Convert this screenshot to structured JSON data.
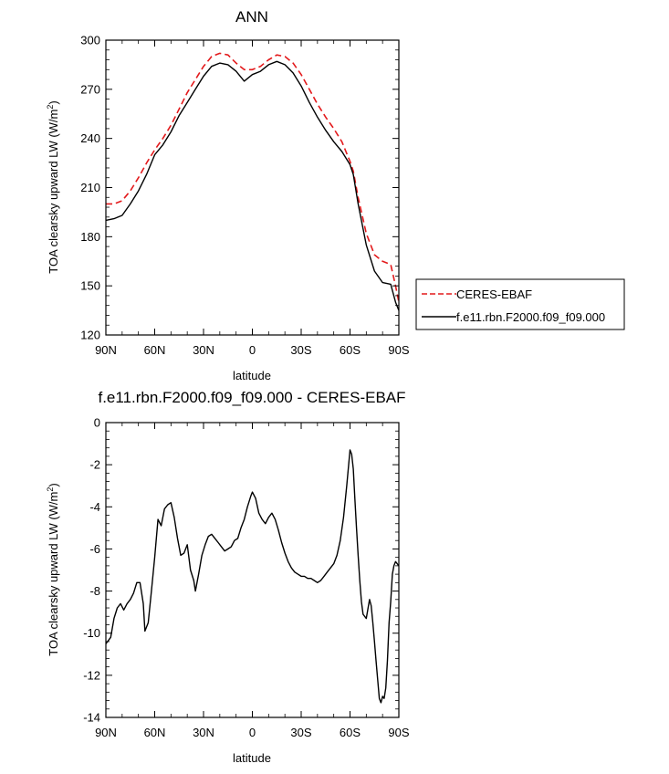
{
  "chart_data": [
    {
      "type": "line",
      "title": "ANN",
      "xlabel": "latitude",
      "ylabel": "TOA clearsky upward LW (W/m",
      "ylabel_sup": "2",
      "ylabel_tail": ")",
      "xlim": [
        -90,
        90
      ],
      "ylim": [
        120,
        300
      ],
      "x_ticks": [
        -90,
        -60,
        -30,
        0,
        30,
        60,
        90
      ],
      "x_tick_labels": [
        "90N",
        "60N",
        "30N",
        "0",
        "30S",
        "60S",
        "90S"
      ],
      "y_ticks": [
        120,
        150,
        180,
        210,
        240,
        270,
        300
      ],
      "y_tick_labels": [
        "120",
        "150",
        "180",
        "210",
        "240",
        "270",
        "300"
      ],
      "legend": {
        "placement": "right-outside"
      },
      "series": [
        {
          "name": "CERES-EBAF",
          "color": "#e31a1c",
          "dash": "dashed",
          "x": [
            -90,
            -85,
            -80,
            -75,
            -70,
            -65,
            -60,
            -55,
            -50,
            -45,
            -40,
            -35,
            -30,
            -25,
            -20,
            -15,
            -10,
            -5,
            0,
            5,
            10,
            15,
            20,
            25,
            30,
            35,
            40,
            45,
            50,
            55,
            60,
            62,
            65,
            70,
            75,
            80,
            85,
            88,
            90
          ],
          "y": [
            200,
            200,
            202,
            208,
            216,
            225,
            233,
            240,
            248,
            258,
            268,
            276,
            284,
            290,
            292,
            291,
            286,
            282,
            282,
            284,
            288,
            291,
            290,
            286,
            279,
            270,
            261,
            253,
            246,
            238,
            226,
            220,
            204,
            182,
            169,
            165,
            163,
            150,
            140
          ]
        },
        {
          "name": "f.e11.rbn.F2000.f09_f09.000",
          "color": "#000000",
          "dash": "solid",
          "x": [
            -90,
            -85,
            -80,
            -75,
            -70,
            -65,
            -60,
            -55,
            -50,
            -45,
            -40,
            -35,
            -30,
            -25,
            -20,
            -15,
            -10,
            -5,
            0,
            5,
            10,
            15,
            20,
            25,
            30,
            35,
            40,
            45,
            50,
            55,
            60,
            62,
            65,
            70,
            75,
            80,
            85,
            88,
            90
          ],
          "y": [
            190,
            191,
            193,
            200,
            208,
            218,
            230,
            236,
            244,
            254,
            262,
            270,
            278,
            284,
            286,
            285,
            281,
            275,
            279,
            281,
            285,
            287,
            285,
            280,
            272,
            262,
            253,
            245,
            238,
            232,
            224,
            218,
            200,
            175,
            159,
            152,
            151,
            140,
            135
          ]
        }
      ]
    },
    {
      "type": "line",
      "title": "f.e11.rbn.F2000.f09_f09.000 - CERES-EBAF",
      "xlabel": "latitude",
      "ylabel": "TOA clearsky upward LW (W/m",
      "ylabel_sup": "2",
      "ylabel_tail": ")",
      "xlim": [
        -90,
        90
      ],
      "ylim": [
        -14,
        0
      ],
      "x_ticks": [
        -90,
        -60,
        -30,
        0,
        30,
        60,
        90
      ],
      "x_tick_labels": [
        "90N",
        "60N",
        "30N",
        "0",
        "30S",
        "60S",
        "90S"
      ],
      "y_ticks": [
        -14,
        -12,
        -10,
        -8,
        -6,
        -4,
        -2,
        0
      ],
      "y_tick_labels": [
        "-14",
        "-12",
        "-10",
        "-8",
        "-6",
        "-4",
        "-2",
        "0"
      ],
      "series": [
        {
          "color": "#000000",
          "dash": "solid",
          "x": [
            -90,
            -87,
            -85,
            -83,
            -81,
            -79,
            -77,
            -75,
            -73,
            -71,
            -69,
            -67,
            -66,
            -64,
            -62,
            -60,
            -58,
            -56,
            -54,
            -52,
            -50,
            -48,
            -46,
            -44,
            -42,
            -40,
            -38,
            -36,
            -35,
            -33,
            -31,
            -29,
            -27,
            -25,
            -23,
            -21,
            -19,
            -17,
            -15,
            -13,
            -11,
            -9,
            -7,
            -5,
            -3,
            -1,
            0,
            2,
            4,
            6,
            8,
            10,
            12,
            14,
            16,
            18,
            20,
            22,
            24,
            26,
            28,
            30,
            32,
            34,
            36,
            38,
            40,
            42,
            44,
            46,
            48,
            50,
            52,
            54,
            56,
            58,
            60,
            61,
            62,
            63,
            64,
            65,
            66,
            67,
            68,
            70,
            72,
            73,
            74,
            75,
            76,
            77,
            78,
            79,
            80,
            81,
            82,
            83,
            84,
            85,
            86,
            87,
            88,
            89,
            90
          ],
          "y": [
            -10.5,
            -10.2,
            -9.3,
            -8.8,
            -8.6,
            -8.9,
            -8.6,
            -8.4,
            -8.1,
            -7.6,
            -7.6,
            -8.6,
            -9.9,
            -9.5,
            -8.0,
            -6.4,
            -4.6,
            -4.9,
            -4.1,
            -3.9,
            -3.8,
            -4.5,
            -5.5,
            -6.3,
            -6.2,
            -5.8,
            -7.0,
            -7.5,
            -8.0,
            -7.2,
            -6.3,
            -5.8,
            -5.4,
            -5.3,
            -5.5,
            -5.7,
            -5.9,
            -6.1,
            -6.0,
            -5.9,
            -5.6,
            -5.5,
            -5.0,
            -4.6,
            -4.0,
            -3.5,
            -3.3,
            -3.6,
            -4.3,
            -4.6,
            -4.8,
            -4.5,
            -4.3,
            -4.6,
            -5.1,
            -5.7,
            -6.2,
            -6.6,
            -6.9,
            -7.1,
            -7.2,
            -7.3,
            -7.3,
            -7.4,
            -7.4,
            -7.5,
            -7.6,
            -7.5,
            -7.3,
            -7.1,
            -6.9,
            -6.7,
            -6.3,
            -5.6,
            -4.5,
            -3.0,
            -1.3,
            -1.5,
            -2.2,
            -3.6,
            -5.0,
            -6.3,
            -7.5,
            -8.5,
            -9.1,
            -9.3,
            -8.4,
            -8.7,
            -9.5,
            -10.4,
            -11.3,
            -12.2,
            -13.1,
            -13.3,
            -13.0,
            -13.1,
            -12.6,
            -11.3,
            -9.5,
            -8.5,
            -7.2,
            -6.8,
            -6.6,
            -6.7,
            -6.8
          ]
        }
      ]
    }
  ]
}
